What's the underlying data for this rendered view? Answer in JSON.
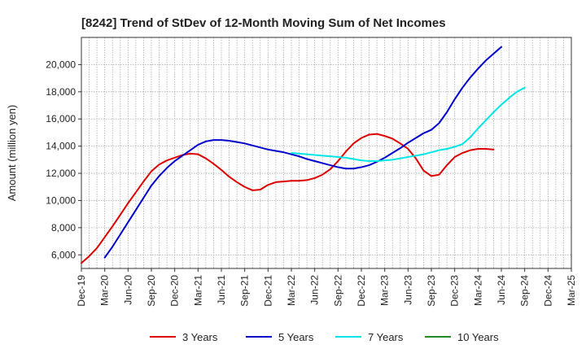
{
  "chart_data": {
    "type": "line",
    "title": "[8242]  Trend of StDev of 12-Month Moving Sum of Net Incomes",
    "ylabel": "Amount (million yen)",
    "xlabel": "",
    "x_ticks": [
      "Dec-19",
      "Mar-20",
      "Jun-20",
      "Sep-20",
      "Dec-20",
      "Mar-21",
      "Jun-21",
      "Sep-21",
      "Dec-21",
      "Mar-22",
      "Jun-22",
      "Sep-22",
      "Dec-22",
      "Mar-23",
      "Jun-23",
      "Sep-23",
      "Dec-23",
      "Mar-24",
      "Jun-24",
      "Sep-24",
      "Dec-24",
      "Mar-25"
    ],
    "y_ticks": [
      "6,000",
      "8,000",
      "10,000",
      "12,000",
      "14,000",
      "16,000",
      "18,000",
      "20,000"
    ],
    "ylim": [
      5000,
      22000
    ],
    "grid": true,
    "legend_position": "bottom",
    "series": [
      {
        "name": "3 Years",
        "color": "#dd0000",
        "start": "Dec-19",
        "values": [
          5400,
          5900,
          6500,
          7300,
          8100,
          8950,
          9800,
          10600,
          11400,
          12150,
          12650,
          12950,
          13150,
          13350,
          13450,
          13400,
          13100,
          12700,
          12250,
          11750,
          11350,
          11000,
          10750,
          10800,
          11150,
          11350,
          11400,
          11450,
          11450,
          11500,
          11650,
          11900,
          12300,
          12900,
          13600,
          14200,
          14600,
          14850,
          14900,
          14750,
          14550,
          14200,
          13800,
          13100,
          12200,
          11800,
          11900,
          12600,
          13200,
          13500,
          13700,
          13800,
          13800,
          13750
        ]
      },
      {
        "name": "5 Years",
        "color": "#0000cc",
        "start": "Mar-20",
        "values": [
          5800,
          6600,
          7500,
          8400,
          9300,
          10200,
          11100,
          11800,
          12400,
          12900,
          13300,
          13700,
          14100,
          14350,
          14450,
          14450,
          14400,
          14300,
          14200,
          14050,
          13900,
          13750,
          13650,
          13550,
          13400,
          13250,
          13050,
          12900,
          12750,
          12600,
          12450,
          12350,
          12350,
          12450,
          12600,
          12850,
          13150,
          13500,
          13850,
          14250,
          14600,
          14950,
          15200,
          15700,
          16500,
          17450,
          18300,
          19050,
          19700,
          20300,
          20800,
          21300
        ]
      },
      {
        "name": "7 Years",
        "color": "#00e5e5",
        "start": "Mar-22",
        "values": [
          13500,
          13450,
          13400,
          13350,
          13300,
          13250,
          13200,
          13150,
          13050,
          12950,
          12900,
          12900,
          12950,
          13000,
          13100,
          13200,
          13300,
          13400,
          13550,
          13700,
          13800,
          13950,
          14150,
          14650,
          15300,
          15900,
          16500,
          17050,
          17550,
          18000,
          18300
        ]
      },
      {
        "name": "10 Years",
        "color": "#228b22",
        "start": "Dec-24",
        "values": []
      }
    ]
  }
}
